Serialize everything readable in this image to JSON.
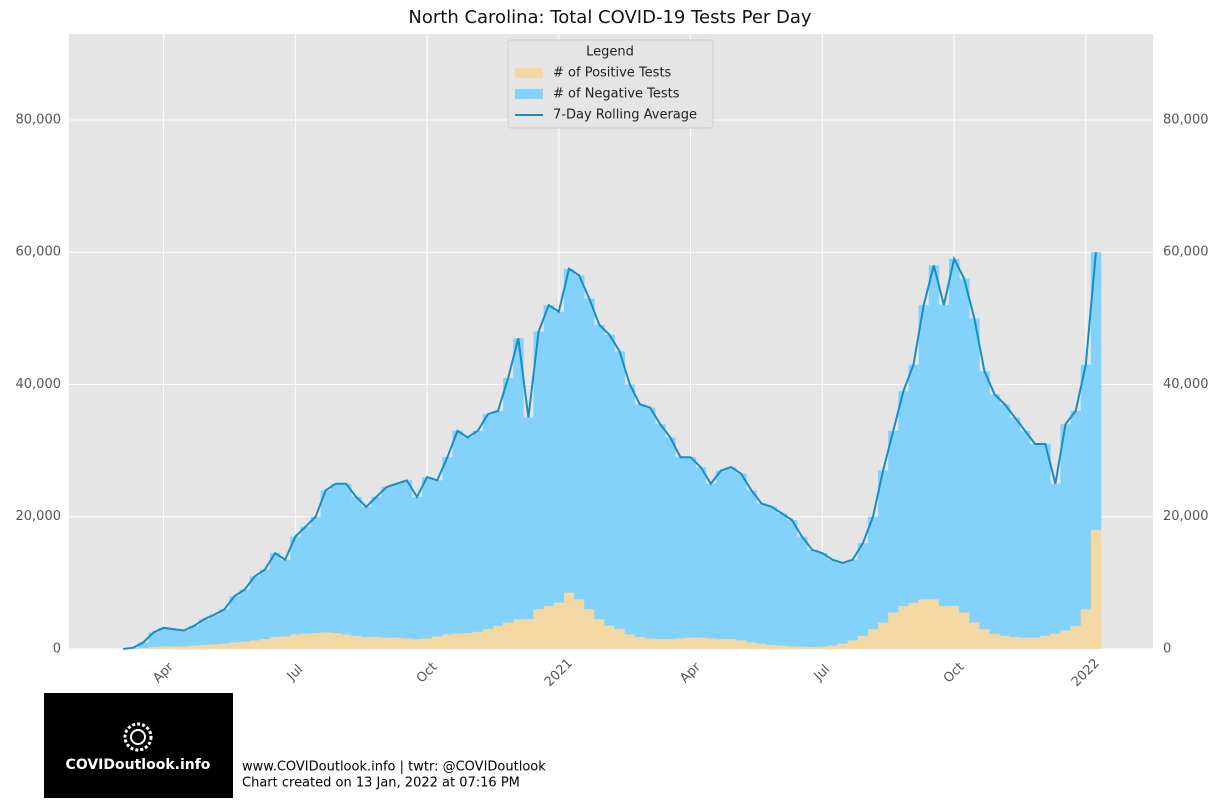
{
  "chart_data": {
    "type": "bar",
    "title": "North Carolina: Total COVID-19 Tests Per Day",
    "categories": [
      null,
      null,
      null,
      null,
      "Apr",
      null,
      null,
      null,
      null,
      null,
      null,
      null,
      null,
      null,
      null,
      null,
      null,
      "Jul",
      null,
      null,
      null,
      null,
      null,
      null,
      null,
      null,
      null,
      null,
      null,
      null,
      "Oct",
      null,
      null,
      null,
      null,
      null,
      null,
      null,
      null,
      null,
      null,
      null,
      null,
      "2021",
      null,
      null,
      null,
      null,
      null,
      null,
      null,
      null,
      null,
      null,
      null,
      null,
      "Apr",
      null,
      null,
      null,
      null,
      null,
      null,
      null,
      null,
      null,
      null,
      null,
      null,
      "Jul",
      null,
      null,
      null,
      null,
      null,
      null,
      null,
      null,
      null,
      null,
      null,
      null,
      "Oct",
      null,
      null,
      null,
      null,
      null,
      null,
      null,
      null,
      null,
      null,
      null,
      null,
      "2022",
      null
    ],
    "series": [
      {
        "name": "# of Positive Tests",
        "type": "bar",
        "color": "#f3d8a3",
        "values": [
          0,
          30,
          150,
          300,
          400,
          400,
          400,
          500,
          600,
          700,
          800,
          1000,
          1100,
          1300,
          1500,
          1800,
          1900,
          2200,
          2300,
          2400,
          2500,
          2400,
          2200,
          2000,
          1800,
          1800,
          1700,
          1700,
          1600,
          1500,
          1600,
          1900,
          2200,
          2300,
          2400,
          2600,
          3000,
          3500,
          4000,
          4500,
          4500,
          6000,
          6500,
          7000,
          8500,
          7500,
          6000,
          4500,
          3500,
          3000,
          2200,
          1800,
          1600,
          1500,
          1500,
          1600,
          1700,
          1700,
          1600,
          1500,
          1500,
          1300,
          1000,
          800,
          600,
          500,
          400,
          350,
          300,
          350,
          500,
          800,
          1300,
          2000,
          3000,
          4000,
          5500,
          6500,
          7000,
          7500,
          7500,
          6500,
          6500,
          5500,
          4000,
          3000,
          2300,
          2000,
          1800,
          1700,
          1700,
          2000,
          2300,
          2800,
          3500,
          6000,
          18000
        ]
      },
      {
        "name": "# of Negative Tests",
        "type": "bar",
        "color": "#83d2fb",
        "values": [
          0,
          170,
          850,
          2200,
          2800,
          2600,
          2400,
          3000,
          3900,
          4500,
          5200,
          7000,
          7900,
          9700,
          10500,
          12700,
          11600,
          14800,
          16200,
          17600,
          21500,
          22600,
          22800,
          21000,
          19700,
          21200,
          22800,
          23300,
          23900,
          21500,
          24400,
          23600,
          26800,
          30700,
          29600,
          30400,
          32500,
          32500,
          37000,
          42500,
          30500,
          42000,
          45500,
          44000,
          49000,
          49000,
          47000,
          44500,
          44000,
          42000,
          37800,
          35200,
          34900,
          32500,
          30500,
          27400,
          27300,
          25800,
          23400,
          25500,
          26000,
          25200,
          23000,
          21200,
          20900,
          20000,
          19100,
          16650,
          14700,
          14150,
          13000,
          12200,
          12200,
          14000,
          17000,
          23000,
          27500,
          32500,
          36000,
          44500,
          50500,
          45500,
          52500,
          50500,
          46000,
          39000,
          36200,
          35000,
          33200,
          31300,
          29300,
          29000,
          22700,
          31200,
          32500,
          37000,
          42000
        ]
      },
      {
        "name": "7-Day Rolling Average",
        "type": "line",
        "color": "#168dc5",
        "values": [
          0,
          200,
          1000,
          2500,
          3200,
          3000,
          2800,
          3500,
          4500,
          5200,
          6000,
          8000,
          9000,
          11000,
          12000,
          14500,
          13500,
          17000,
          18500,
          20000,
          24000,
          25000,
          25000,
          23000,
          21500,
          23000,
          24500,
          25000,
          25500,
          23000,
          26000,
          25500,
          29000,
          33000,
          32000,
          33000,
          35500,
          36000,
          41000,
          47000,
          35000,
          48000,
          52000,
          51000,
          57500,
          56500,
          53000,
          49000,
          47500,
          45000,
          40000,
          37000,
          36500,
          34000,
          32000,
          29000,
          29000,
          27500,
          25000,
          27000,
          27500,
          26500,
          24000,
          22000,
          21500,
          20500,
          19500,
          17000,
          15000,
          14500,
          13500,
          13000,
          13500,
          16000,
          20000,
          27000,
          33000,
          39000,
          43000,
          52000,
          58000,
          52000,
          59000,
          56000,
          50000,
          42000,
          38500,
          37000,
          35000,
          33000,
          31000,
          31000,
          25000,
          34000,
          36000,
          43000,
          60000
        ]
      }
    ],
    "stacked": true,
    "ylim": [
      0,
      93000
    ],
    "yticks": [
      0,
      {
        "value": 20000,
        "label": "20,000"
      },
      {
        "value": 40000,
        "label": "40,000"
      },
      {
        "value": 60000,
        "label": "60,000"
      },
      {
        "value": 80000,
        "label": "80,000"
      }
    ],
    "grid": true,
    "legend_title": "Legend",
    "legend": "upper center"
  },
  "footer": {
    "logo_text": "COVIDoutlook.info",
    "line1": "www.COVIDoutlook.info | twtr: @COVIDoutlook",
    "line2": "Chart created on 13 Jan, 2022 at 07:16 PM"
  }
}
